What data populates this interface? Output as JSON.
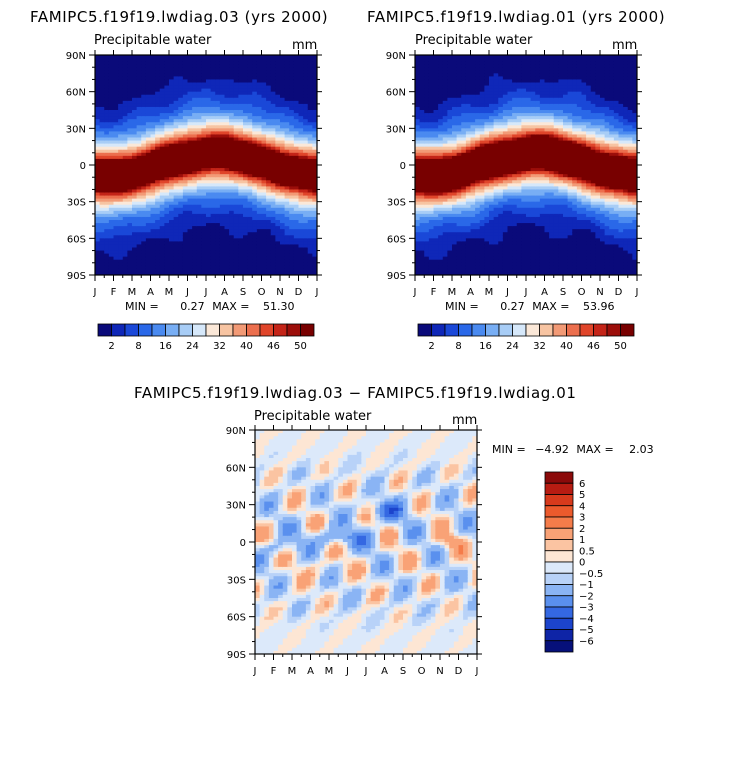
{
  "chart_data": [
    {
      "type": "heatmap",
      "id": "left",
      "title": "FAMIPC5.f19f19.lwdiag.03 (yrs 2000)",
      "subtitle": "Precipitable water",
      "units": "mm",
      "x_ticks": [
        "J",
        "F",
        "M",
        "A",
        "M",
        "J",
        "J",
        "A",
        "S",
        "O",
        "N",
        "D",
        "J"
      ],
      "y_ticks": [
        "90N",
        "60N",
        "30N",
        "0",
        "30S",
        "60S",
        "90S"
      ],
      "ylim": [
        -90,
        90
      ],
      "min_label": "MIN =",
      "min_value": "0.27",
      "max_label": "MAX =",
      "max_value": "51.30",
      "colorbar_levels": [
        "2",
        "8",
        "16",
        "24",
        "32",
        "40",
        "46",
        "50"
      ],
      "colorbar_colors": [
        "#0a0a7a",
        "#0f27b8",
        "#1a48d8",
        "#2a68e8",
        "#4a8af0",
        "#78aef4",
        "#a8cdf6",
        "#d6e8fa",
        "#fbe8d8",
        "#f7c4a2",
        "#f29a76",
        "#ec6f4e",
        "#e0452a",
        "#c42418",
        "#9c0e0a",
        "#780000"
      ],
      "peak_mm": 51.3
    },
    {
      "type": "heatmap",
      "id": "right",
      "title": "FAMIPC5.f19f19.lwdiag.01 (yrs 2000)",
      "subtitle": "Precipitable water",
      "units": "mm",
      "x_ticks": [
        "J",
        "F",
        "M",
        "A",
        "M",
        "J",
        "J",
        "A",
        "S",
        "O",
        "N",
        "D",
        "J"
      ],
      "y_ticks": [
        "90N",
        "60N",
        "30N",
        "0",
        "30S",
        "60S",
        "90S"
      ],
      "ylim": [
        -90,
        90
      ],
      "min_label": "MIN =",
      "min_value": "0.27",
      "max_label": "MAX =",
      "max_value": "53.96",
      "colorbar_levels": [
        "2",
        "8",
        "16",
        "24",
        "32",
        "40",
        "46",
        "50"
      ],
      "colorbar_colors": [
        "#0a0a7a",
        "#0f27b8",
        "#1a48d8",
        "#2a68e8",
        "#4a8af0",
        "#78aef4",
        "#a8cdf6",
        "#d6e8fa",
        "#fbe8d8",
        "#f7c4a2",
        "#f29a76",
        "#ec6f4e",
        "#e0452a",
        "#c42418",
        "#9c0e0a",
        "#780000"
      ],
      "peak_mm": 53.96
    },
    {
      "type": "heatmap",
      "id": "diff",
      "title": "FAMIPC5.f19f19.lwdiag.03 − FAMIPC5.f19f19.lwdiag.01",
      "subtitle": "Precipitable water",
      "units": "mm",
      "x_ticks": [
        "J",
        "F",
        "M",
        "A",
        "M",
        "J",
        "J",
        "A",
        "S",
        "O",
        "N",
        "D",
        "J"
      ],
      "y_ticks": [
        "90N",
        "60N",
        "30N",
        "0",
        "30S",
        "60S",
        "90S"
      ],
      "ylim": [
        -90,
        90
      ],
      "min_label": "MIN =",
      "min_value": "−4.92",
      "max_label": "MAX =",
      "max_value": "2.03",
      "colorbar_levels": [
        "6",
        "5",
        "4",
        "3",
        "2",
        "1",
        "0.5",
        "0",
        "−0.5",
        "−1",
        "−2",
        "−3",
        "−4",
        "−5",
        "−6"
      ],
      "colorbar_colors": [
        "#8b0a0a",
        "#b81c12",
        "#d83a1c",
        "#ec5a2c",
        "#f57c4a",
        "#f9a276",
        "#fbc4a2",
        "#fde6d4",
        "#dce9fa",
        "#b8d2f8",
        "#8ab4f4",
        "#5a90ee",
        "#3468e2",
        "#1c44cc",
        "#0e24a6",
        "#06107a"
      ]
    }
  ]
}
